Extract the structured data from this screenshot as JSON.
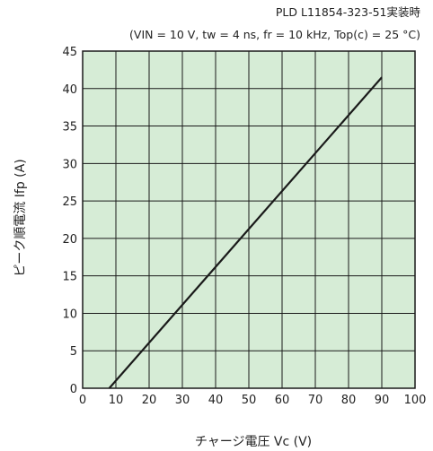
{
  "chart_data": {
    "type": "line",
    "annotation_line1": "PLD L11854-323-51実装時",
    "annotation_line2": "(VIN = 10 V, tw = 4 ns, fr = 10 kHz, Top(c) = 25 °C)",
    "xlabel": "チャージ電圧 Vc (V)",
    "ylabel": "ピーク順電流 Ifp (A)",
    "xlim": [
      0,
      100
    ],
    "ylim": [
      0,
      45
    ],
    "x_ticks": [
      0,
      10,
      20,
      30,
      40,
      50,
      60,
      70,
      80,
      90,
      100
    ],
    "y_ticks": [
      0,
      5,
      10,
      15,
      20,
      25,
      30,
      35,
      40,
      45
    ],
    "grid": true,
    "plot_background": "#d6ecd6",
    "line_color": "#1a1a1a",
    "series": [
      {
        "x": [
          8,
          90
        ],
        "y": [
          0,
          41.5
        ]
      }
    ]
  }
}
